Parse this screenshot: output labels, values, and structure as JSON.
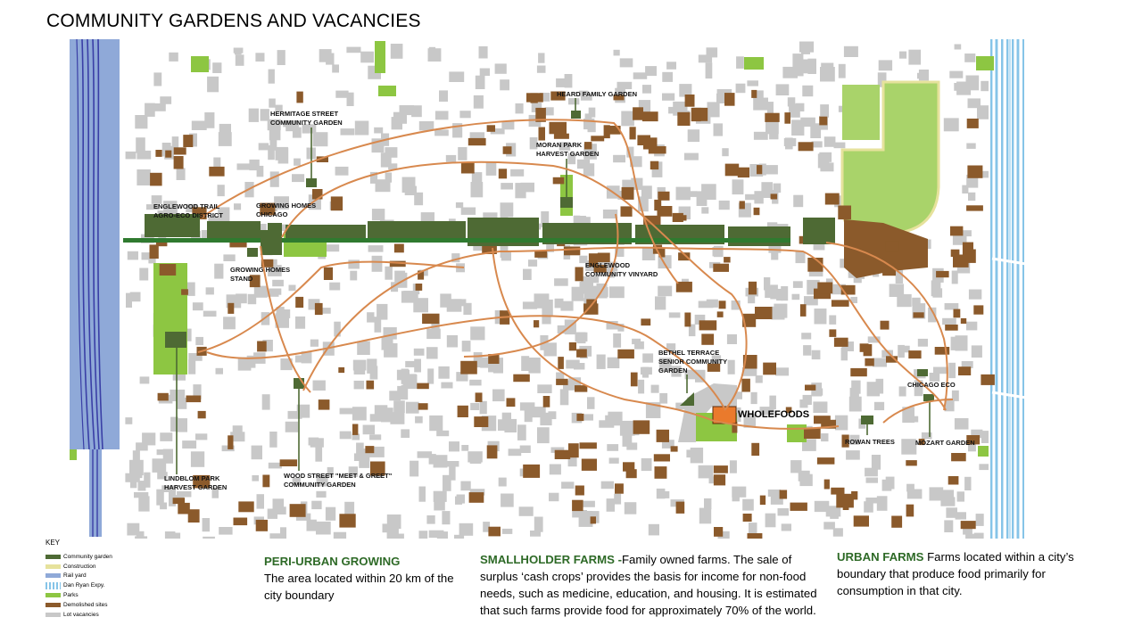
{
  "title": "COMMUNITY GARDENS AND VACANCIES",
  "colors": {
    "community_garden": "#4e6a34",
    "construction": "#e6e29c",
    "rail_yard": "#8fa9d8",
    "dan_ryan": "#86c4e8",
    "parks": "#8dc642",
    "demolished": "#8b5a2b",
    "vacancies": "#c8c8c8",
    "routes": "#d8894e",
    "wholefoods": "#ea7a2c",
    "trail": "#2f7a2f"
  },
  "map": {
    "labels": {
      "heard": "HEARD FAMILY GARDEN",
      "hermitage_1": "HERMITAGE STREET",
      "hermitage_2": "COMMUNITY GARDEN",
      "moran_1": "MORAN PARK",
      "moran_2": "HARVEST GARDEN",
      "englewood_trail_1": "ENGLEWOOD TRAIL",
      "englewood_trail_2": "AGRO-ECO DISTRICT",
      "growing_homes_1": "GROWING HOMES",
      "growing_homes_2": "CHICAGO",
      "stand_1": "GROWING HOMES",
      "stand_2": "STAND",
      "vinyard_1": "ENGLEWOOD",
      "vinyard_2": "COMMUNITY VINYARD",
      "bethel_1": "BETHEL TERRACE",
      "bethel_2": "SENIOR COMMUNITY",
      "bethel_3": "GARDEN",
      "chicago_eco": "CHICAGO ECO",
      "wholefoods": "WHOLEFOODS",
      "rowan": "ROWAN TREES",
      "mozart": "MOZART GARDEN",
      "lindblom_1": "LINDBLOM PARK",
      "lindblom_2": "HARVEST GARDEN",
      "wood_1": "WOOD STREET \"MEET & GREET\"",
      "wood_2": "COMMUNITY GARDEN"
    }
  },
  "key": {
    "title": "KEY",
    "items": [
      {
        "label": "Community garden",
        "color": "#4e6a34",
        "pattern": "solid"
      },
      {
        "label": "Construction",
        "color": "#e6e29c",
        "pattern": "solid"
      },
      {
        "label": "Rail yard",
        "color": "#8fa9d8",
        "pattern": "solid"
      },
      {
        "label": "Dan Ryan Expy.",
        "color": "#86c4e8",
        "pattern": "stripes"
      },
      {
        "label": "Parks",
        "color": "#8dc642",
        "pattern": "solid"
      },
      {
        "label": "Demolished sites",
        "color": "#8b5a2b",
        "pattern": "solid"
      },
      {
        "label": "Lot vacancies",
        "color": "#c8c8c8",
        "pattern": "solid"
      }
    ]
  },
  "descriptions": {
    "peri": {
      "heading": "PERI-URBAN GROWING",
      "body": "The area located within 20 km of the city boundary"
    },
    "smallholder": {
      "heading": "SMALLHOLDER FARMS -",
      "body": "Family owned farms. The sale of surplus ‘cash crops’ provides the basis for income for non-food needs, such as medicine, education, and housing. It is estimated that such farms provide food for approximately 70% of the world."
    },
    "urban": {
      "heading": "URBAN FARMS",
      "body": " Farms located within a city’s boundary that produce food primarily for consumption in that city."
    }
  }
}
